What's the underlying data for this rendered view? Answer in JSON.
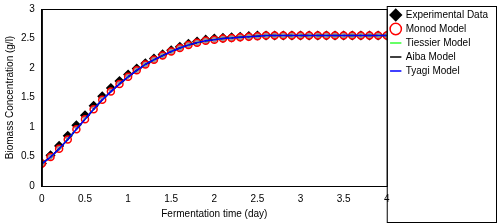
{
  "chart_data": {
    "type": "line",
    "x_label": "Fermentation time (day)",
    "y_label": "Biomass Concentration (g/l)",
    "x": [
      0,
      0.1,
      0.2,
      0.3,
      0.4,
      0.5,
      0.6,
      0.7,
      0.8,
      0.9,
      1.0,
      1.1,
      1.2,
      1.3,
      1.4,
      1.5,
      1.6,
      1.7,
      1.8,
      1.9,
      2.0,
      2.1,
      2.2,
      2.3,
      2.4,
      2.5,
      2.6,
      2.7,
      2.8,
      2.9,
      3.0,
      3.1,
      3.2,
      3.3,
      3.4,
      3.5,
      3.6,
      3.7,
      3.8,
      3.9,
      4.0
    ],
    "xlim": [
      0,
      4
    ],
    "xticks": [
      0,
      0.5,
      1,
      1.5,
      2,
      2.5,
      3,
      3.5,
      4
    ],
    "ylim": [
      0,
      3
    ],
    "yticks": [
      0,
      0.5,
      1,
      1.5,
      2,
      2.5,
      3
    ],
    "grid": false,
    "legend": "outside right",
    "series": [
      {
        "name": "Experimental Data",
        "color": "#000000",
        "marker": "diamond",
        "line_style": "none",
        "values": [
          0.38,
          0.52,
          0.68,
          0.85,
          1.03,
          1.2,
          1.36,
          1.52,
          1.66,
          1.78,
          1.89,
          1.99,
          2.08,
          2.16,
          2.23,
          2.3,
          2.36,
          2.41,
          2.45,
          2.48,
          2.5,
          2.51,
          2.52,
          2.53,
          2.54,
          2.55,
          2.55,
          2.55,
          2.55,
          2.55,
          2.55,
          2.55,
          2.55,
          2.55,
          2.55,
          2.55,
          2.55,
          2.55,
          2.55,
          2.55,
          2.55
        ]
      },
      {
        "name": "Monod Model",
        "color": "#ff0000",
        "marker": "circle",
        "line_style": "solid",
        "values": [
          0.38,
          0.49,
          0.63,
          0.79,
          0.96,
          1.13,
          1.3,
          1.46,
          1.6,
          1.73,
          1.85,
          1.96,
          2.06,
          2.14,
          2.21,
          2.28,
          2.34,
          2.39,
          2.43,
          2.46,
          2.48,
          2.5,
          2.51,
          2.52,
          2.53,
          2.54,
          2.55,
          2.55,
          2.55,
          2.55,
          2.55,
          2.55,
          2.55,
          2.55,
          2.55,
          2.55,
          2.55,
          2.55,
          2.55,
          2.55,
          2.55
        ]
      },
      {
        "name": "Tiessier Model",
        "color": "#33ff33",
        "marker": "none",
        "line_style": "dashed",
        "values": [
          0.38,
          0.49,
          0.63,
          0.79,
          0.96,
          1.13,
          1.3,
          1.46,
          1.6,
          1.73,
          1.85,
          1.96,
          2.06,
          2.14,
          2.21,
          2.28,
          2.34,
          2.39,
          2.43,
          2.46,
          2.48,
          2.5,
          2.51,
          2.52,
          2.53,
          2.54,
          2.55,
          2.55,
          2.55,
          2.55,
          2.55,
          2.55,
          2.55,
          2.55,
          2.55,
          2.55,
          2.55,
          2.55,
          2.55,
          2.55,
          2.55
        ]
      },
      {
        "name": "Aiba Model",
        "color": "#000000",
        "marker": "none",
        "line_style": "dashdot",
        "values": [
          0.38,
          0.49,
          0.63,
          0.79,
          0.96,
          1.13,
          1.3,
          1.46,
          1.6,
          1.73,
          1.85,
          1.96,
          2.06,
          2.14,
          2.21,
          2.28,
          2.34,
          2.39,
          2.43,
          2.46,
          2.48,
          2.5,
          2.51,
          2.52,
          2.53,
          2.54,
          2.55,
          2.55,
          2.55,
          2.55,
          2.55,
          2.55,
          2.55,
          2.55,
          2.55,
          2.55,
          2.55,
          2.55,
          2.55,
          2.55,
          2.55
        ]
      },
      {
        "name": "Tyagi Model",
        "color": "#0000ff",
        "marker": "none",
        "line_style": "solid",
        "values": [
          0.38,
          0.49,
          0.63,
          0.79,
          0.96,
          1.13,
          1.3,
          1.46,
          1.6,
          1.73,
          1.85,
          1.96,
          2.06,
          2.14,
          2.21,
          2.28,
          2.34,
          2.39,
          2.43,
          2.46,
          2.48,
          2.5,
          2.51,
          2.52,
          2.53,
          2.54,
          2.55,
          2.55,
          2.55,
          2.55,
          2.55,
          2.55,
          2.55,
          2.55,
          2.55,
          2.55,
          2.55,
          2.55,
          2.55,
          2.55,
          2.55
        ]
      }
    ]
  }
}
